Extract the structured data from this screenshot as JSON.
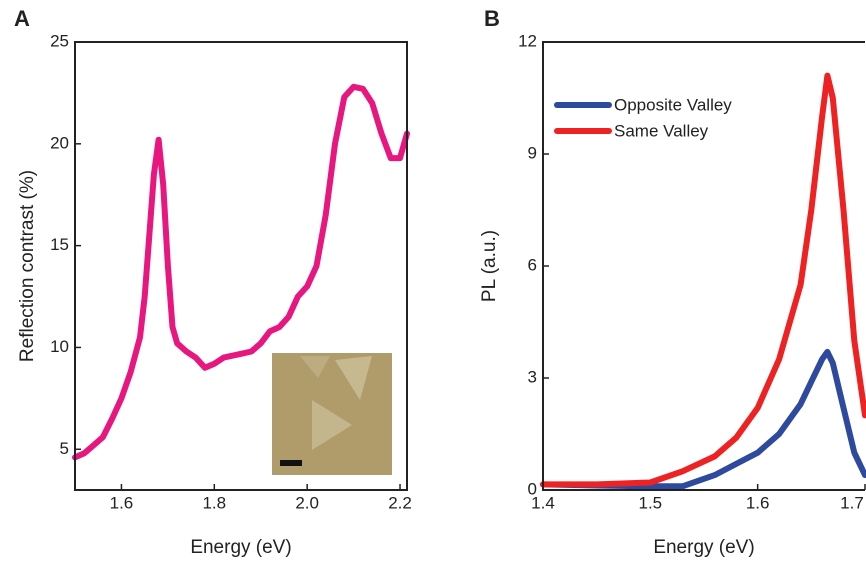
{
  "chart_data": [
    {
      "type": "line",
      "panel_label": "A",
      "xlabel": "Energy (eV)",
      "ylabel": "Reflection contrast (%)",
      "x": [
        1.5,
        1.52,
        1.54,
        1.56,
        1.58,
        1.6,
        1.62,
        1.64,
        1.65,
        1.66,
        1.67,
        1.68,
        1.69,
        1.7,
        1.71,
        1.72,
        1.74,
        1.76,
        1.78,
        1.8,
        1.82,
        1.84,
        1.86,
        1.88,
        1.9,
        1.92,
        1.94,
        1.96,
        1.98,
        2.0,
        2.02,
        2.04,
        2.06,
        2.08,
        2.1,
        2.12,
        2.14,
        2.16,
        2.18,
        2.2,
        2.215
      ],
      "series": [
        {
          "color": "#e8177f",
          "values": [
            4.6,
            4.8,
            5.2,
            5.6,
            6.5,
            7.5,
            8.8,
            10.5,
            12.5,
            15.5,
            18.5,
            20.2,
            18,
            14,
            11,
            10.2,
            9.8,
            9.5,
            9.0,
            9.2,
            9.5,
            9.6,
            9.7,
            9.8,
            10.2,
            10.8,
            11.0,
            11.5,
            12.5,
            13.0,
            14.0,
            16.5,
            20,
            22.3,
            22.8,
            22.7,
            22.0,
            20.5,
            19.3,
            19.3,
            20.5
          ]
        }
      ],
      "xlim": [
        1.5,
        2.215
      ],
      "ylim": [
        3,
        25
      ],
      "xticks": [
        1.6,
        1.8,
        {
          "value": 2.0,
          "label": "2.0"
        },
        2.2
      ],
      "yticks": [
        5,
        10,
        15,
        20,
        25
      ]
    },
    {
      "type": "line",
      "panel_label": "B",
      "xlabel": "Energy (eV)",
      "ylabel": "PL (a.u.)",
      "x": [
        1.4,
        1.45,
        1.5,
        1.53,
        1.56,
        1.58,
        1.6,
        1.62,
        1.64,
        1.65,
        1.66,
        1.665,
        1.67,
        1.68,
        1.69,
        1.7
      ],
      "series": [
        {
          "name": "Opposite Valley",
          "color": "#2e4a9e",
          "values": [
            0.15,
            0.12,
            0.1,
            0.1,
            0.4,
            0.7,
            1.0,
            1.5,
            2.3,
            2.9,
            3.5,
            3.7,
            3.4,
            2.2,
            1.0,
            0.4
          ]
        },
        {
          "name": "Same Valley",
          "color": "#ee2222",
          "values": [
            0.15,
            0.15,
            0.2,
            0.5,
            0.9,
            1.4,
            2.2,
            3.5,
            5.5,
            7.5,
            10,
            11.1,
            10.5,
            7.5,
            4,
            2.0
          ]
        }
      ],
      "xlim": [
        1.4,
        1.7
      ],
      "ylim": [
        0,
        12
      ],
      "xticks": [
        1.4,
        1.5,
        1.6,
        1.7
      ],
      "yticks": [
        0,
        3,
        6,
        9,
        12
      ],
      "legend": "upper left"
    }
  ]
}
